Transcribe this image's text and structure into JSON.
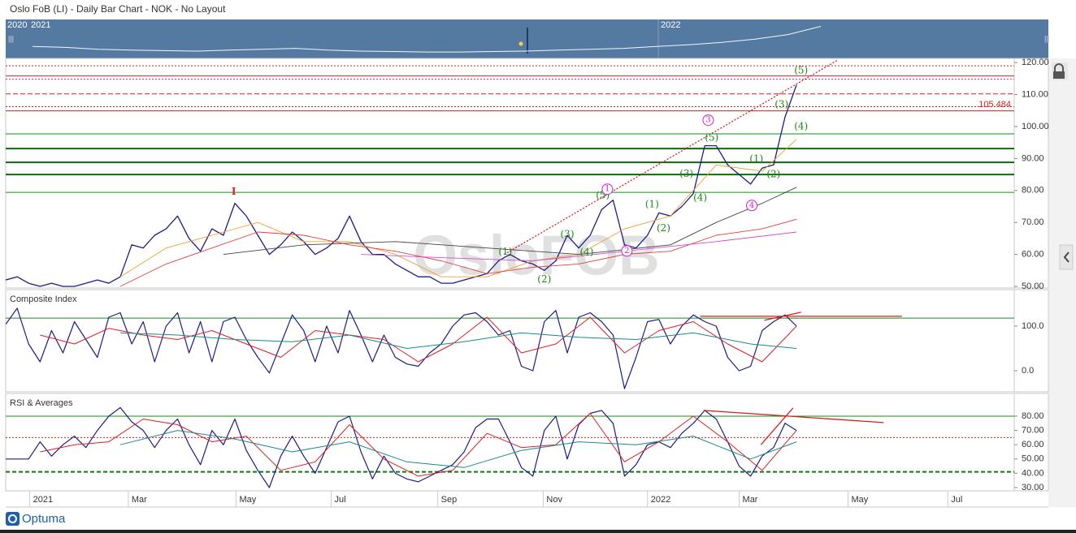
{
  "title": "Oslo FoB (LI) - Daily Bar Chart - NOK - No Layout",
  "watermark": "OsloFOB",
  "brand": "Optuma",
  "navigator": {
    "labels": [
      "2020",
      "2021",
      "2022"
    ],
    "ylim": [
      40,
      125
    ],
    "values": [
      66,
      64,
      60,
      58,
      57,
      56,
      58,
      60,
      62,
      58,
      56,
      55,
      54,
      54,
      55,
      56,
      58,
      60,
      62,
      66,
      70,
      75,
      82,
      92,
      110
    ]
  },
  "chart_data": [
    {
      "type": "line",
      "xlim": [
        0,
        88
      ],
      "ylim": [
        49.5,
        121.3
      ],
      "yticks": [
        {
          "value": 50,
          "label": "50.00"
        },
        {
          "value": 60,
          "label": "60.00"
        },
        {
          "value": 70,
          "label": "70.00"
        },
        {
          "value": 80,
          "label": "80.00"
        },
        {
          "value": 90,
          "label": "90.00"
        },
        {
          "value": 100,
          "label": "100.00"
        },
        {
          "value": 110,
          "label": "110.00"
        },
        {
          "value": 120,
          "label": "120.00"
        }
      ],
      "x": [
        0,
        1,
        2,
        3,
        4,
        5,
        6,
        7,
        8,
        9,
        10,
        11,
        12,
        13,
        14,
        15,
        16,
        17,
        18,
        19,
        20,
        21,
        22,
        23,
        24,
        25,
        26,
        27,
        28,
        29,
        30,
        31,
        32,
        33,
        34,
        35,
        36,
        37,
        38,
        39,
        40,
        41,
        42,
        43,
        44,
        45,
        46,
        47,
        48,
        49,
        50,
        51,
        52,
        53,
        54,
        55,
        56,
        57,
        58,
        59,
        60,
        61,
        62,
        63,
        64,
        65,
        66,
        67,
        68,
        69
      ],
      "series": [
        {
          "color": "#1c1c8a",
          "width": 1.3,
          "values": [
            52,
            53,
            51,
            50,
            51,
            50,
            50,
            51,
            52,
            51,
            53,
            63,
            62,
            66,
            68,
            72,
            65,
            61,
            68,
            66,
            76,
            72,
            66,
            60,
            63,
            67,
            64,
            60,
            62,
            65,
            72,
            64,
            60,
            60,
            57,
            55,
            53,
            53,
            51,
            51,
            52,
            53,
            54,
            58,
            60,
            58,
            57,
            55,
            58,
            66,
            62,
            66,
            74,
            77,
            63,
            62,
            66,
            73,
            72,
            75,
            79,
            94,
            94,
            88,
            85,
            82,
            87,
            88,
            103,
            113
          ]
        },
        {
          "color": "#f0a030",
          "width": 0.9,
          "x": [
            10,
            14,
            18,
            22,
            26,
            30,
            34,
            38,
            42,
            46,
            50,
            54,
            58,
            62,
            66,
            69
          ],
          "values": [
            53,
            62,
            66,
            70,
            64,
            64,
            60,
            53,
            53,
            58,
            60,
            68,
            72,
            88,
            86,
            96
          ]
        },
        {
          "color": "#e04040",
          "width": 0.9,
          "x": [
            10,
            14,
            18,
            22,
            26,
            30,
            34,
            38,
            42,
            46,
            50,
            54,
            58,
            62,
            66,
            69
          ],
          "values": [
            50,
            57,
            62,
            67,
            66,
            63,
            61,
            58,
            54,
            56,
            57,
            60,
            61,
            66,
            68,
            71
          ]
        },
        {
          "color": "#444444",
          "width": 0.9,
          "x": [
            19,
            26,
            34,
            42,
            50,
            58,
            62,
            66,
            69
          ],
          "values": [
            60,
            63,
            64,
            62,
            60,
            63,
            70,
            76,
            81
          ]
        },
        {
          "color": "#d050d0",
          "width": 0.9,
          "x": [
            31,
            38,
            46,
            54,
            62,
            69
          ],
          "values": [
            60,
            59,
            58,
            61,
            64,
            67
          ]
        }
      ],
      "levels": [
        {
          "value": 119,
          "color": "#d62020",
          "style": "dotted"
        },
        {
          "value": 115.8,
          "color": "#d62020",
          "style": "solid"
        },
        {
          "value": 114.8,
          "color": "#c020c0",
          "style": "dotted"
        },
        {
          "value": 110.2,
          "color": "#d62020",
          "style": "dashed"
        },
        {
          "value": 106.2,
          "color": "#d62020",
          "style": "dotted"
        },
        {
          "value": 104.9,
          "color": "#d62020",
          "style": "solid"
        },
        {
          "value": 97.7,
          "color": "#1a8a1a",
          "style": "solid"
        },
        {
          "value": 93.1,
          "color": "#0d6a0d",
          "style": "thick"
        },
        {
          "value": 88.8,
          "color": "#0d6a0d",
          "style": "thick"
        },
        {
          "value": 85,
          "color": "#0d6a0d",
          "style": "thick"
        },
        {
          "value": 79.4,
          "color": "#1a8a1a",
          "style": "solid"
        }
      ],
      "price_label": {
        "value": 105.484,
        "color": "#d62020"
      },
      "trendlines": [
        {
          "color": "#d62020",
          "style": "dotted",
          "x": [
            43.5,
            72.6
          ],
          "values": [
            60,
            120.8
          ]
        }
      ],
      "annotations": [
        {
          "text": "I",
          "x": 19.9,
          "y": 79.6,
          "color": "#d62020",
          "circle": false
        },
        {
          "text": "(1)",
          "x": 43.6,
          "y": 60.8,
          "color": "#1a8a1a",
          "circle": false
        },
        {
          "text": "(2)",
          "x": 47,
          "y": 52.2,
          "color": "#1a8a1a",
          "circle": false
        },
        {
          "text": "(3)",
          "x": 49,
          "y": 66.2,
          "color": "#1a8a1a",
          "circle": false
        },
        {
          "text": "(4)",
          "x": 50.7,
          "y": 60.6,
          "color": "#1a8a1a",
          "circle": false
        },
        {
          "text": "(5)",
          "x": 52.1,
          "y": 78.4,
          "color": "#1a8a1a",
          "circle": false
        },
        {
          "text": "(1)",
          "x": 56.4,
          "y": 75.6,
          "color": "#1a8a1a",
          "circle": false
        },
        {
          "text": "(2)",
          "x": 57.4,
          "y": 68.2,
          "color": "#1a8a1a",
          "circle": false
        },
        {
          "text": "(3)",
          "x": 59.4,
          "y": 85.2,
          "color": "#1a8a1a",
          "circle": false
        },
        {
          "text": "(4)",
          "x": 60.6,
          "y": 77.6,
          "color": "#1a8a1a",
          "circle": false
        },
        {
          "text": "(5)",
          "x": 61.6,
          "y": 96.4,
          "color": "#1a8a1a",
          "circle": false
        },
        {
          "text": "(1)",
          "x": 65.5,
          "y": 89.8,
          "color": "#1a8a1a",
          "circle": false
        },
        {
          "text": "(2)",
          "x": 67,
          "y": 85,
          "color": "#1a8a1a",
          "circle": false
        },
        {
          "text": "(3)",
          "x": 67.7,
          "y": 106.8,
          "color": "#1a8a1a",
          "circle": false
        },
        {
          "text": "(4)",
          "x": 69.4,
          "y": 100,
          "color": "#1a8a1a",
          "circle": false
        },
        {
          "text": "(5)",
          "x": 69.4,
          "y": 117.5,
          "color": "#1a8a1a",
          "circle": false
        },
        {
          "text": "1",
          "x": 52.5,
          "y": 80.4,
          "color": "#d020d0",
          "circle": true
        },
        {
          "text": "2",
          "x": 54.2,
          "y": 61.1,
          "color": "#d020d0",
          "circle": true
        },
        {
          "text": "3",
          "x": 61.3,
          "y": 102,
          "color": "#d020d0",
          "circle": true
        },
        {
          "text": "4",
          "x": 65.1,
          "y": 75.3,
          "color": "#d020d0",
          "circle": true
        }
      ]
    },
    {
      "type": "line",
      "title": "Composite Index",
      "xlim": [
        0,
        88
      ],
      "ylim": [
        -47.3,
        181.8
      ],
      "yticks": [
        {
          "value": 0,
          "label": "0.0"
        },
        {
          "value": 100,
          "label": "100.0"
        }
      ],
      "x": [
        0,
        1,
        2,
        3,
        4,
        5,
        6,
        7,
        8,
        9,
        10,
        11,
        12,
        13,
        14,
        15,
        16,
        17,
        18,
        19,
        20,
        21,
        22,
        23,
        24,
        25,
        26,
        27,
        28,
        29,
        30,
        31,
        32,
        33,
        34,
        35,
        36,
        37,
        38,
        39,
        40,
        41,
        42,
        43,
        44,
        45,
        46,
        47,
        48,
        49,
        50,
        51,
        52,
        53,
        54,
        55,
        56,
        57,
        58,
        59,
        60,
        61,
        62,
        63,
        64,
        65,
        66,
        67,
        68,
        69
      ],
      "series": [
        {
          "color": "#1c1c8a",
          "width": 1.2,
          "values": [
            104,
            140,
            60,
            20,
            90,
            40,
            110,
            70,
            30,
            120,
            130,
            60,
            110,
            20,
            100,
            130,
            40,
            110,
            20,
            110,
            120,
            70,
            30,
            -5,
            60,
            125,
            90,
            20,
            100,
            40,
            135,
            80,
            20,
            80,
            30,
            15,
            10,
            40,
            60,
            100,
            125,
            130,
            110,
            80,
            90,
            10,
            0,
            110,
            135,
            40,
            120,
            130,
            110,
            80,
            -40,
            30,
            110,
            115,
            60,
            100,
            125,
            110,
            100,
            30,
            0,
            10,
            90,
            110,
            125,
            100
          ]
        },
        {
          "color": "#e02020",
          "width": 1,
          "x": [
            3,
            6,
            9,
            12,
            15,
            18,
            21,
            24,
            27,
            30,
            33,
            36,
            39,
            42,
            45,
            48,
            51,
            54,
            57,
            60,
            63,
            66,
            69
          ],
          "values": [
            80,
            60,
            95,
            80,
            70,
            90,
            60,
            30,
            90,
            80,
            70,
            20,
            60,
            120,
            40,
            60,
            120,
            40,
            90,
            110,
            60,
            20,
            100
          ]
        },
        {
          "color": "#1a8a8a",
          "width": 1,
          "x": [
            10,
            15,
            20,
            25,
            30,
            35,
            40,
            45,
            50,
            55,
            60,
            65,
            69
          ],
          "values": [
            85,
            80,
            70,
            65,
            80,
            50,
            65,
            85,
            75,
            70,
            85,
            60,
            50
          ]
        }
      ],
      "levels": [
        {
          "value": 118,
          "color": "#1a8a1a",
          "style": "solid"
        }
      ],
      "trendlines": [
        {
          "color": "#d62020",
          "style": "solid",
          "x": [
            60.6,
            78.2
          ],
          "values": [
            122,
            122
          ]
        },
        {
          "color": "#d62020",
          "style": "solid",
          "x": [
            66.2,
            69.4
          ],
          "values": [
            113,
            131
          ]
        }
      ]
    },
    {
      "type": "line",
      "title": "RSI & Averages",
      "xlim": [
        0,
        88
      ],
      "ylim": [
        27.7,
        95.9
      ],
      "yticks": [
        {
          "value": 30,
          "label": "30.00"
        },
        {
          "value": 40,
          "label": "40.00"
        },
        {
          "value": 50,
          "label": "50.00"
        },
        {
          "value": 60,
          "label": "60.00"
        },
        {
          "value": 70,
          "label": "70.00"
        },
        {
          "value": 80,
          "label": "80.00"
        }
      ],
      "xticks": [
        {
          "value": 2.1,
          "label": "2021"
        },
        {
          "value": 10.7,
          "label": "Mar"
        },
        {
          "value": 20.1,
          "label": "May"
        },
        {
          "value": 28.4,
          "label": "Jul"
        },
        {
          "value": 37.7,
          "label": "Sep"
        },
        {
          "value": 46.9,
          "label": "Nov"
        },
        {
          "value": 56,
          "label": "2022"
        },
        {
          "value": 64,
          "label": "Mar"
        },
        {
          "value": 73.5,
          "label": "May"
        },
        {
          "value": 82.2,
          "label": "Jul"
        }
      ],
      "x": [
        0,
        1,
        2,
        3,
        4,
        5,
        6,
        7,
        8,
        9,
        10,
        11,
        12,
        13,
        14,
        15,
        16,
        17,
        18,
        19,
        20,
        21,
        22,
        23,
        24,
        25,
        26,
        27,
        28,
        29,
        30,
        31,
        32,
        33,
        34,
        35,
        36,
        37,
        38,
        39,
        40,
        41,
        42,
        43,
        44,
        45,
        46,
        47,
        48,
        49,
        50,
        51,
        52,
        53,
        54,
        55,
        56,
        57,
        58,
        59,
        60,
        61,
        62,
        63,
        64,
        65,
        66,
        67,
        68,
        69
      ],
      "series": [
        {
          "color": "#1c1c8a",
          "width": 1.2,
          "values": [
            50,
            50,
            50,
            62,
            52,
            60,
            66,
            58,
            70,
            80,
            86,
            76,
            70,
            58,
            70,
            78,
            60,
            46,
            70,
            60,
            78,
            56,
            42,
            30,
            52,
            66,
            52,
            40,
            58,
            76,
            80,
            55,
            36,
            52,
            40,
            36,
            34,
            38,
            42,
            46,
            55,
            72,
            78,
            78,
            62,
            44,
            38,
            70,
            80,
            50,
            74,
            82,
            84,
            75,
            38,
            46,
            60,
            62,
            58,
            68,
            75,
            84,
            78,
            62,
            45,
            38,
            52,
            58,
            75,
            70
          ]
        },
        {
          "color": "#e02020",
          "width": 1,
          "x": [
            3,
            6,
            9,
            12,
            15,
            18,
            21,
            24,
            27,
            30,
            33,
            36,
            39,
            42,
            45,
            48,
            51,
            54,
            57,
            60,
            63,
            66,
            69
          ],
          "values": [
            55,
            60,
            62,
            78,
            74,
            62,
            66,
            42,
            48,
            74,
            50,
            38,
            42,
            68,
            58,
            60,
            82,
            48,
            62,
            80,
            62,
            42,
            70
          ]
        },
        {
          "color": "#1a8a8a",
          "width": 1,
          "x": [
            10,
            15,
            20,
            25,
            30,
            35,
            40,
            45,
            50,
            55,
            60,
            65,
            69
          ],
          "values": [
            60,
            70,
            64,
            55,
            62,
            48,
            44,
            56,
            62,
            60,
            66,
            50,
            62
          ]
        }
      ],
      "levels": [
        {
          "value": 80,
          "color": "#1a8a1a",
          "style": "solid"
        },
        {
          "value": 65,
          "color": "#d62020",
          "style": "dotted"
        },
        {
          "value": 41,
          "color": "#0d7a0d",
          "style": "dashedthick"
        }
      ],
      "trendlines": [
        {
          "color": "#d62020",
          "style": "solid",
          "x": [
            60.9,
            76.6
          ],
          "values": [
            84,
            75.5
          ]
        },
        {
          "color": "#d62020",
          "style": "solid",
          "x": [
            65.9,
            68.7
          ],
          "values": [
            60,
            85.7
          ]
        }
      ]
    }
  ]
}
